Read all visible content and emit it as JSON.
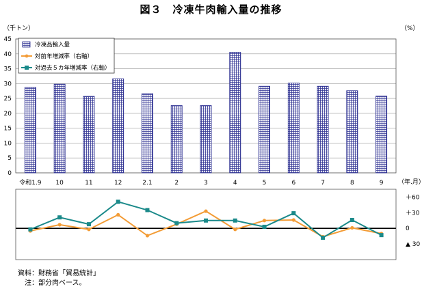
{
  "title": "図３　冷凍牛肉輸入量の推移",
  "units": {
    "left": "（千トン）",
    "right": "（%）",
    "period": "（年.月）"
  },
  "notes": [
    "資料：財務省「貿易統計」",
    "　注：部分肉ベース。"
  ],
  "colors": {
    "bars_stroke": "#2e3192",
    "bars_fill": "#ffffff",
    "yoy": "#f39c36",
    "five_year": "#1b8a8a",
    "zero_line": "#000000",
    "grid": "#999999"
  },
  "chart_data": [
    {
      "type": "bar",
      "categories": [
        "令和1.9",
        "10",
        "11",
        "12",
        "2.1",
        "2",
        "3",
        "4",
        "5",
        "6",
        "7",
        "8",
        "9"
      ],
      "series": [
        {
          "name": "冷凍品輸入量",
          "values": [
            28.7,
            29.8,
            25.7,
            31.6,
            26.6,
            22.6,
            22.6,
            40.5,
            29.1,
            30.2,
            29.1,
            27.6,
            25.8
          ]
        }
      ],
      "ylim": [
        0,
        45
      ],
      "yticks": [
        0,
        5,
        10,
        15,
        20,
        25,
        30,
        35,
        40,
        45
      ],
      "legend": [
        "冷凍品輸入量",
        "対前年増減率（右軸）",
        "対過去５カ年増減率（右軸）"
      ],
      "legend_position": "top-left",
      "grid": true
    },
    {
      "type": "line",
      "categories": [
        "令和1.9",
        "10",
        "11",
        "12",
        "2.1",
        "2",
        "3",
        "4",
        "5",
        "6",
        "7",
        "8",
        "9"
      ],
      "series": [
        {
          "name": "対前年増減率（右軸）",
          "values": [
            -5,
            7,
            -2,
            26,
            -14,
            8,
            33,
            -2,
            15,
            16,
            -16,
            1,
            -10
          ]
        },
        {
          "name": "対過去５カ年増減率（右軸）",
          "values": [
            -2,
            21,
            8,
            51,
            35,
            10,
            15,
            15,
            3,
            29,
            -18,
            16,
            -13
          ]
        }
      ],
      "ylim": [
        -60,
        75
      ],
      "yticks": [
        60,
        30,
        0,
        -30
      ],
      "ytick_labels": [
        "＋60",
        "＋30",
        "0",
        "▲ 30"
      ],
      "grid": false
    }
  ]
}
